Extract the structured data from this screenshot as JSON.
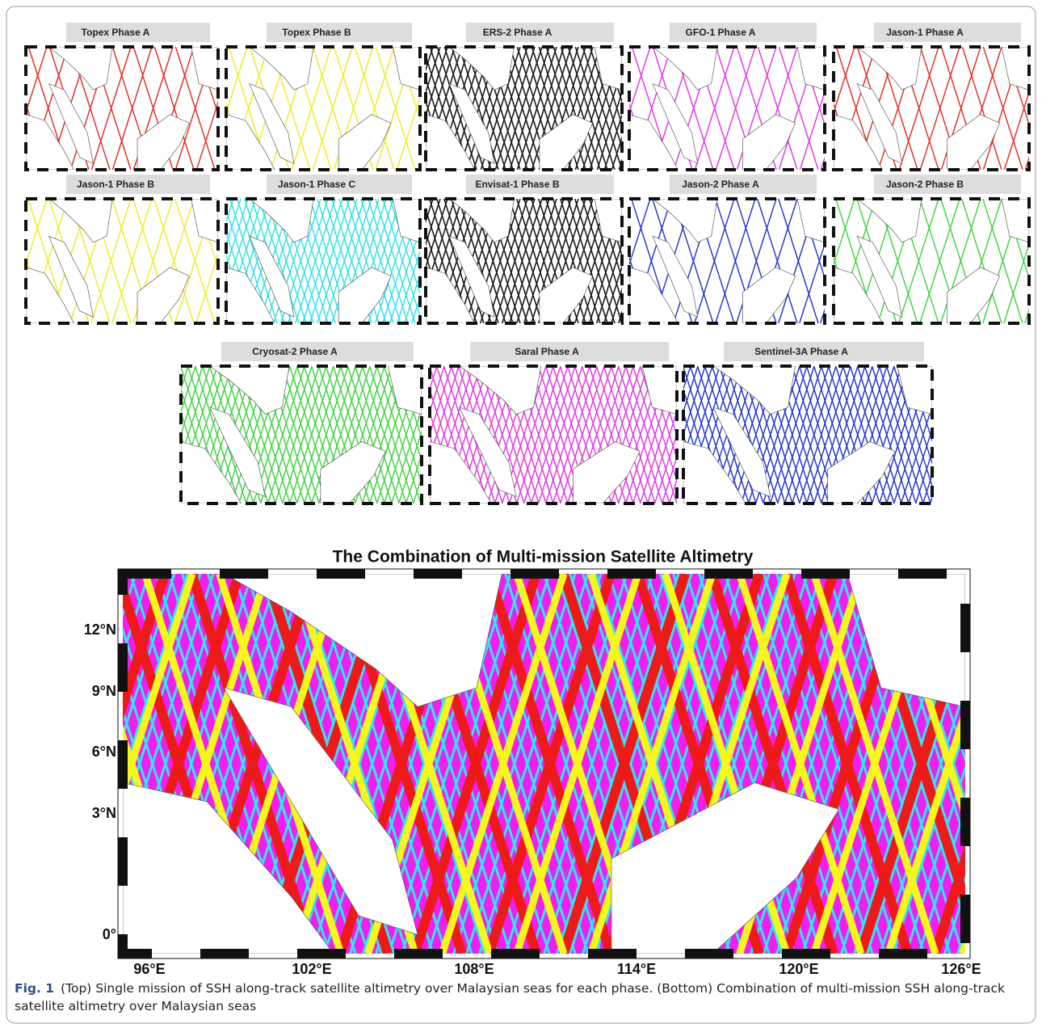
{
  "panels": [
    {
      "title": "Topex Phase A",
      "color": "#e3261c"
    },
    {
      "title": "Topex Phase B",
      "color": "#f2e81e"
    },
    {
      "title": "ERS-2 Phase A",
      "color": "#1a1a1a"
    },
    {
      "title": "GFO-1 Phase A",
      "color": "#e033e0"
    },
    {
      "title": "Jason-1 Phase A",
      "color": "#e3261c"
    },
    {
      "title": "Jason-1 Phase B",
      "color": "#f2e81e"
    },
    {
      "title": "Jason-1 Phase C",
      "color": "#2de0e8"
    },
    {
      "title": "Envisat-1 Phase B",
      "color": "#1a1a1a"
    },
    {
      "title": "Jason-2 Phase A",
      "color": "#1c2fd0"
    },
    {
      "title": "Jason-2 Phase B",
      "color": "#3ad23a"
    },
    {
      "title": "Cryosat-2 Phase A",
      "color": "#3ad23a"
    },
    {
      "title": "Saral Phase A",
      "color": "#e033e0"
    },
    {
      "title": "Sentinel-3A Phase A",
      "color": "#1c2fd0"
    }
  ],
  "combined_map": {
    "title": "The Combination of Multi-mission Satellite Altimetry",
    "xtick_labels": [
      "96°E",
      "102°E",
      "108°E",
      "114°E",
      "120°E",
      "126°E"
    ],
    "ytick_labels": [
      "12°N",
      "9°N",
      "6°N",
      "3°N",
      "0°"
    ],
    "colors": [
      "#f01ff0",
      "#2de8f0",
      "#ee1a1a",
      "#f7f71e"
    ]
  },
  "caption": {
    "label": "Fig. 1",
    "text": "(Top) Single mission of SSH along-track satellite altimetry over Malaysian seas for each phase. (Bottom) Combination of multi-mission SSH along-track satellite altimetry over Malaysian seas"
  }
}
